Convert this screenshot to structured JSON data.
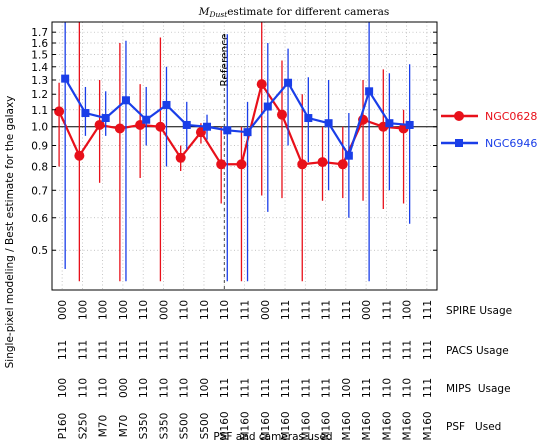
{
  "chart_data": {
    "type": "line",
    "title_main": "M",
    "title_sub": "Dust",
    "title_rest": "estimate for different cameras",
    "xlabel": "PSF and cameras used",
    "ylabel": "Single-pixel modeling / Best estimate for the galaxy",
    "log_y": true,
    "ylim": [
      0.4,
      1.8
    ],
    "yticks": [
      0.5,
      0.6,
      0.7,
      0.8,
      0.9,
      1.0,
      1.1,
      1.2,
      1.3,
      1.4,
      1.5,
      1.6,
      1.7
    ],
    "ytick_labels": [
      "0.5",
      "0.6",
      "0.7",
      "0.8",
      "0.9",
      "1.0",
      "1.1",
      "1.2",
      "1.3",
      "1.4",
      "1.5",
      "1.6",
      "1.7"
    ],
    "grid": true,
    "legend_position": "right",
    "reference_x": 9,
    "reference_label": "Reference",
    "x": [
      1,
      2,
      3,
      4,
      5,
      6,
      7,
      8,
      9,
      10,
      11,
      12,
      13,
      14,
      15,
      16,
      17,
      18,
      19
    ],
    "spire_usage": [
      "000",
      "100",
      "100",
      "100",
      "110",
      "000",
      "110",
      "110",
      "110",
      "111",
      "000",
      "111",
      "111",
      "111",
      "111",
      "000",
      "111",
      "100",
      "111"
    ],
    "pacs_usage": [
      "111",
      "111",
      "111",
      "111",
      "111",
      "111",
      "111",
      "111",
      "111",
      "111",
      "111",
      "111",
      "111",
      "111",
      "111",
      "111",
      "111",
      "111",
      "111"
    ],
    "mips_usage": [
      "100",
      "110",
      "110",
      "000",
      "110",
      "110",
      "110",
      "100",
      "111",
      "111",
      "111",
      "111",
      "111",
      "111",
      "100",
      "111",
      "110",
      "110",
      "111"
    ],
    "psf_used": [
      "P160",
      "S250",
      "M70",
      "M70",
      "S350",
      "S350",
      "S500",
      "S500",
      "M160",
      "M160",
      "M160",
      "M160",
      "M160",
      "M160",
      "M160",
      "M160",
      "M160",
      "M160",
      "M160"
    ],
    "row_labels": {
      "spire": "SPIRE Usage",
      "pacs": "PACS Usage",
      "mips": "MIPS  Usage",
      "psf": "PSF   Used"
    },
    "series": [
      {
        "name": "NGC0628",
        "color": "#e8101a",
        "marker": "circle",
        "offset": -0.15,
        "values": [
          1.09,
          0.85,
          1.01,
          0.99,
          1.01,
          1.0,
          0.84,
          0.97,
          0.81,
          0.81,
          1.27,
          1.07,
          0.81,
          0.82,
          0.81,
          1.04,
          1.0,
          0.99
        ],
        "x": [
          1,
          2,
          3,
          4,
          5,
          6,
          7,
          8,
          9,
          10,
          11,
          12,
          13,
          14,
          15,
          16,
          17,
          18
        ],
        "err_low": [
          0.8,
          0.42,
          0.73,
          0.42,
          0.75,
          0.42,
          0.78,
          0.91,
          0.65,
          0.42,
          0.68,
          0.67,
          0.42,
          0.66,
          0.67,
          0.66,
          0.63,
          0.65
        ],
        "err_high": [
          1.28,
          1.8,
          1.3,
          1.6,
          1.27,
          1.65,
          0.9,
          1.02,
          1.0,
          1.0,
          1.8,
          1.45,
          1.2,
          1.0,
          1.0,
          1.3,
          1.38,
          1.1
        ]
      },
      {
        "name": "NGC6946",
        "color": "#1a3ee8",
        "marker": "square",
        "offset": 0.15,
        "values": [
          1.31,
          1.08,
          1.05,
          1.16,
          1.04,
          1.13,
          1.01,
          1.0,
          0.98,
          0.97,
          1.12,
          1.28,
          1.05,
          1.02,
          0.85,
          1.22,
          1.02,
          1.01
        ],
        "x": [
          1,
          2,
          3,
          4,
          5,
          6,
          7,
          8,
          9,
          10,
          11,
          12,
          13,
          14,
          15,
          16,
          17,
          18
        ],
        "err_low": [
          0.45,
          0.95,
          0.95,
          0.42,
          0.9,
          0.8,
          0.88,
          0.93,
          0.42,
          0.42,
          0.62,
          0.9,
          0.82,
          0.7,
          0.6,
          0.42,
          0.7,
          0.58
        ],
        "err_high": [
          1.8,
          1.25,
          1.22,
          1.62,
          1.25,
          1.4,
          1.15,
          1.07,
          1.68,
          1.15,
          1.6,
          1.55,
          1.32,
          1.3,
          1.08,
          1.8,
          1.35,
          1.42
        ]
      }
    ]
  }
}
